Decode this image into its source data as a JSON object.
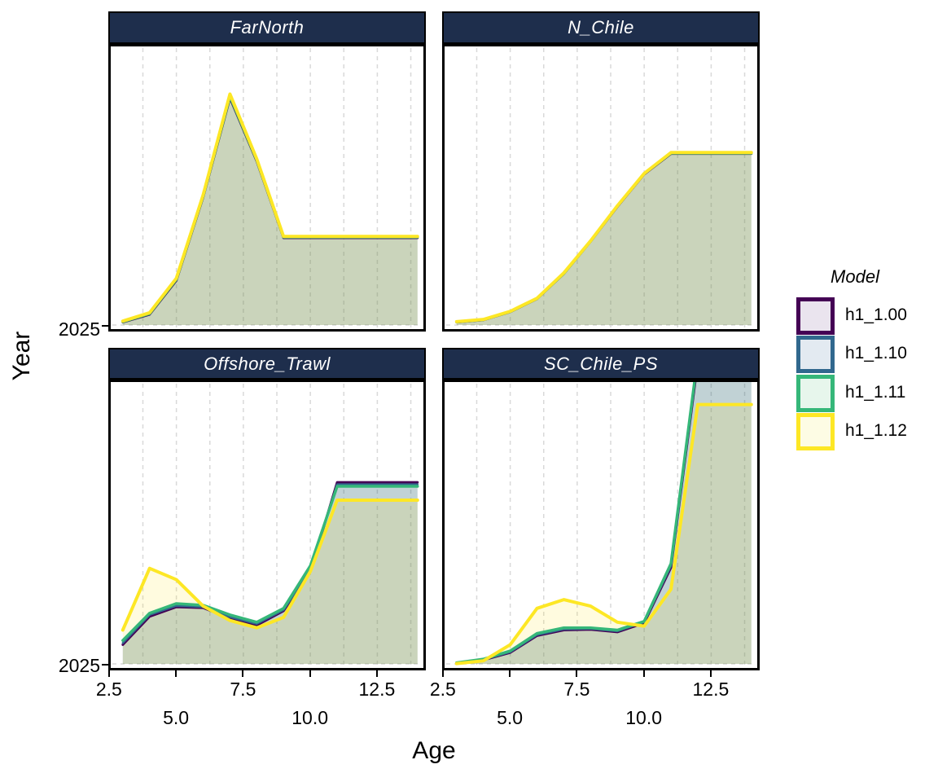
{
  "axes": {
    "x_title": "Age",
    "y_title": "Year",
    "y_tick_label": "2025"
  },
  "legend": {
    "title": "Model",
    "entries": [
      {
        "label": "h1_1.00",
        "color": "#440154",
        "key_fill": "#eae4ee"
      },
      {
        "label": "h1_1.10",
        "color": "#31688e",
        "key_fill": "#e3eaf1"
      },
      {
        "label": "h1_1.11",
        "color": "#35b779",
        "key_fill": "#e7f6ec"
      },
      {
        "label": "h1_1.12",
        "color": "#fde725",
        "key_fill": "#fdfce4"
      }
    ]
  },
  "style": {
    "strip_bg": "#1e2e4c",
    "strip_text_color": "#ffffff",
    "gridline_color": "#d9d9d9",
    "fill_alphas": [
      0.1,
      0.12,
      0.12,
      0.15
    ],
    "line_widths": [
      3,
      2.5,
      3.5,
      4
    ]
  },
  "chart_data": {
    "type": "area",
    "xlabel": "Age",
    "ylabel": "Year",
    "year_shown": "2025",
    "x": [
      3,
      4,
      5,
      6,
      7,
      8,
      9,
      10,
      11,
      12,
      13,
      14
    ],
    "x_range": [
      2.55,
      14.22
    ],
    "x_gridlines": [
      3.75,
      5.0,
      6.25,
      7.5,
      8.75,
      10.0,
      11.25,
      12.5,
      13.75
    ],
    "x_ticks_row1": [
      {
        "label": "2.5",
        "age": 2.5
      },
      {
        "label": "7.5",
        "age": 7.5
      },
      {
        "label": "12.5",
        "age": 12.5
      }
    ],
    "x_ticks_row2": [
      {
        "label": "5.0",
        "age": 5.0
      },
      {
        "label": "10.0",
        "age": 10.0
      }
    ],
    "value_units": "selectivity height, 0 = 2025 baseline, 1.0 = panel top (values > 1 are clipped)",
    "models": [
      "h1_1.00",
      "h1_1.10",
      "h1_1.11",
      "h1_1.12"
    ],
    "facets": [
      {
        "name": "FarNorth",
        "series": [
          {
            "model": "h1_1.00",
            "values": [
              0.01,
              0.038,
              0.16,
              0.459,
              0.815,
              0.588,
              0.313,
              0.313,
              0.313,
              0.313,
              0.313,
              0.313
            ]
          },
          {
            "model": "h1_1.10",
            "values": [
              0.011,
              0.039,
              0.162,
              0.461,
              0.818,
              0.59,
              0.314,
              0.314,
              0.314,
              0.314,
              0.314,
              0.314
            ]
          },
          {
            "model": "h1_1.11",
            "values": [
              0.012,
              0.041,
              0.164,
              0.463,
              0.821,
              0.592,
              0.316,
              0.316,
              0.316,
              0.316,
              0.316,
              0.316
            ]
          },
          {
            "model": "h1_1.12",
            "values": [
              0.014,
              0.044,
              0.168,
              0.467,
              0.829,
              0.596,
              0.318,
              0.318,
              0.318,
              0.318,
              0.318,
              0.318
            ]
          }
        ]
      },
      {
        "name": "N_Chile",
        "series": [
          {
            "model": "h1_1.00",
            "values": [
              0.01,
              0.018,
              0.047,
              0.094,
              0.184,
              0.3,
              0.425,
              0.541,
              0.615,
              0.615,
              0.615,
              0.615
            ]
          },
          {
            "model": "h1_1.10",
            "values": [
              0.01,
              0.019,
              0.047,
              0.094,
              0.185,
              0.3,
              0.426,
              0.542,
              0.616,
              0.616,
              0.616,
              0.616
            ]
          },
          {
            "model": "h1_1.11",
            "values": [
              0.011,
              0.019,
              0.048,
              0.095,
              0.185,
              0.301,
              0.427,
              0.543,
              0.617,
              0.617,
              0.617,
              0.617
            ]
          },
          {
            "model": "h1_1.12",
            "values": [
              0.012,
              0.02,
              0.049,
              0.096,
              0.187,
              0.302,
              0.428,
              0.544,
              0.619,
              0.619,
              0.619,
              0.619
            ]
          }
        ]
      },
      {
        "name": "Offshore_Trawl",
        "series": [
          {
            "model": "h1_1.00",
            "values": [
              0.068,
              0.168,
              0.202,
              0.199,
              0.162,
              0.137,
              0.188,
              0.328,
              0.644,
              0.644,
              0.644,
              0.644
            ]
          },
          {
            "model": "h1_1.10",
            "values": [
              0.074,
              0.174,
              0.206,
              0.202,
              0.166,
              0.142,
              0.191,
              0.333,
              0.637,
              0.637,
              0.637,
              0.637
            ]
          },
          {
            "model": "h1_1.11",
            "values": [
              0.083,
              0.18,
              0.214,
              0.208,
              0.174,
              0.148,
              0.197,
              0.348,
              0.63,
              0.63,
              0.63,
              0.63
            ]
          },
          {
            "model": "h1_1.12",
            "values": [
              0.12,
              0.339,
              0.299,
              0.205,
              0.154,
              0.128,
              0.165,
              0.328,
              0.581,
              0.581,
              0.581,
              0.581
            ]
          }
        ]
      },
      {
        "name": "SC_Chile_PS",
        "series": [
          {
            "model": "h1_1.00",
            "values": [
              0.003,
              0.014,
              0.04,
              0.1,
              0.12,
              0.122,
              0.113,
              0.145,
              0.342,
              1.07,
              1.07,
              1.07
            ]
          },
          {
            "model": "h1_1.10",
            "values": [
              0.003,
              0.015,
              0.042,
              0.103,
              0.123,
              0.125,
              0.116,
              0.148,
              0.348,
              1.08,
              1.08,
              1.08
            ]
          },
          {
            "model": "h1_1.11",
            "values": [
              0.004,
              0.017,
              0.046,
              0.108,
              0.128,
              0.128,
              0.12,
              0.151,
              0.356,
              1.09,
              1.09,
              1.09
            ]
          },
          {
            "model": "h1_1.12",
            "values": [
              0.001,
              0.011,
              0.068,
              0.197,
              0.228,
              0.205,
              0.148,
              0.134,
              0.265,
              0.92,
              0.92,
              0.92
            ]
          }
        ]
      }
    ]
  }
}
